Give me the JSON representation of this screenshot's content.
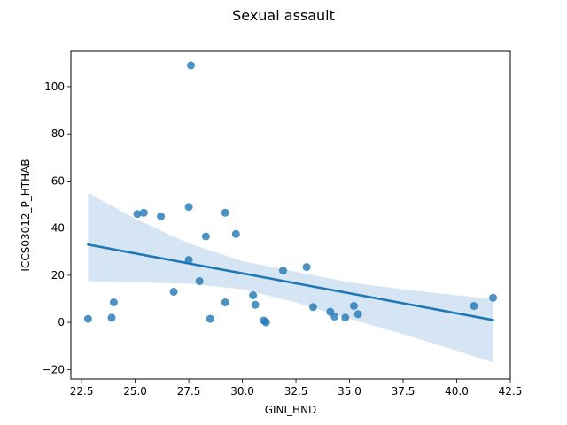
{
  "chart_data": {
    "type": "scatter",
    "title": "Sexual assault",
    "xlabel": "GINI_HND",
    "ylabel": "ICCS03012_P_HTHAB",
    "xlim": [
      22.0,
      42.5
    ],
    "ylim": [
      -24,
      115
    ],
    "x_ticks": [
      "22.5",
      "25.0",
      "27.5",
      "30.0",
      "32.5",
      "35.0",
      "37.5",
      "40.0",
      "42.5"
    ],
    "y_ticks": [
      "−20",
      "0",
      "20",
      "40",
      "60",
      "80",
      "100"
    ],
    "grid": false,
    "point_color": "#1f77b4",
    "band_color": "#c7dcef",
    "points": [
      {
        "x": 22.8,
        "y": 1.5
      },
      {
        "x": 23.9,
        "y": 2.0
      },
      {
        "x": 24.0,
        "y": 8.5
      },
      {
        "x": 25.1,
        "y": 46.0
      },
      {
        "x": 25.4,
        "y": 46.5
      },
      {
        "x": 26.2,
        "y": 45.0
      },
      {
        "x": 26.8,
        "y": 13.0
      },
      {
        "x": 27.5,
        "y": 49.0
      },
      {
        "x": 27.5,
        "y": 26.5
      },
      {
        "x": 27.6,
        "y": 109.0
      },
      {
        "x": 28.0,
        "y": 17.5
      },
      {
        "x": 28.3,
        "y": 36.5
      },
      {
        "x": 28.5,
        "y": 1.5
      },
      {
        "x": 29.2,
        "y": 46.5
      },
      {
        "x": 29.2,
        "y": 8.5
      },
      {
        "x": 29.7,
        "y": 37.5
      },
      {
        "x": 30.5,
        "y": 11.5
      },
      {
        "x": 30.6,
        "y": 7.5
      },
      {
        "x": 31.0,
        "y": 0.8
      },
      {
        "x": 31.1,
        "y": 0.0
      },
      {
        "x": 31.9,
        "y": 22.0
      },
      {
        "x": 33.0,
        "y": 23.5
      },
      {
        "x": 33.3,
        "y": 6.5
      },
      {
        "x": 34.1,
        "y": 4.5
      },
      {
        "x": 34.3,
        "y": 2.5
      },
      {
        "x": 34.8,
        "y": 2.0
      },
      {
        "x": 35.2,
        "y": 7.0
      },
      {
        "x": 35.4,
        "y": 3.5
      },
      {
        "x": 40.8,
        "y": 7.0
      },
      {
        "x": 41.7,
        "y": 10.5
      }
    ],
    "regression": {
      "x": [
        22.8,
        41.7
      ],
      "y": [
        33.0,
        1.0
      ]
    },
    "confidence_band": {
      "x": [
        22.8,
        25.0,
        27.5,
        30.0,
        32.5,
        35.0,
        37.5,
        40.0,
        41.7
      ],
      "upper": [
        55.0,
        44.0,
        33.5,
        26.0,
        21.5,
        17.0,
        14.0,
        11.5,
        10.0
      ],
      "lower": [
        17.5,
        17.0,
        16.5,
        14.0,
        8.5,
        1.5,
        -5.0,
        -12.0,
        -17.0
      ]
    }
  }
}
